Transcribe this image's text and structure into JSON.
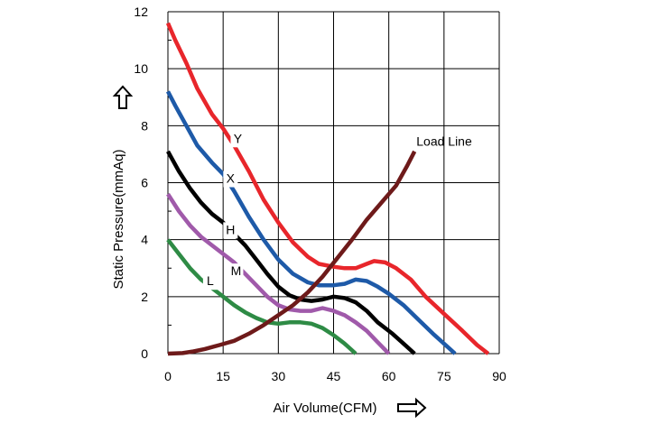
{
  "chart_data": {
    "type": "line",
    "title": "",
    "xlabel": "Air Volume(CFM)",
    "ylabel": "Static Pressure(mmAq)",
    "xlim": [
      0,
      90
    ],
    "ylim": [
      0,
      12
    ],
    "xticks": [
      0,
      15,
      30,
      45,
      60,
      75,
      90
    ],
    "yticks": [
      0,
      2,
      4,
      6,
      8,
      10,
      12
    ],
    "grid": true,
    "legend": "none",
    "series": [
      {
        "name": "Y",
        "color": "#e8262b",
        "points": [
          [
            0,
            11.6
          ],
          [
            2,
            11.0
          ],
          [
            5,
            10.2
          ],
          [
            8,
            9.3
          ],
          [
            12,
            8.4
          ],
          [
            15,
            7.9
          ],
          [
            18,
            7.3
          ],
          [
            22,
            6.4
          ],
          [
            26,
            5.4
          ],
          [
            30,
            4.6
          ],
          [
            34,
            3.9
          ],
          [
            38,
            3.4
          ],
          [
            41,
            3.15
          ],
          [
            45,
            3.05
          ],
          [
            48,
            3.0
          ],
          [
            51,
            3.0
          ],
          [
            54,
            3.15
          ],
          [
            56,
            3.25
          ],
          [
            59,
            3.2
          ],
          [
            62,
            3.0
          ],
          [
            66,
            2.6
          ],
          [
            70,
            2.0
          ],
          [
            75,
            1.4
          ],
          [
            80,
            0.8
          ],
          [
            84,
            0.3
          ],
          [
            87,
            0.0
          ]
        ]
      },
      {
        "name": "X",
        "color": "#1e5aa8",
        "points": [
          [
            0,
            9.2
          ],
          [
            2,
            8.7
          ],
          [
            5,
            8.0
          ],
          [
            8,
            7.3
          ],
          [
            12,
            6.7
          ],
          [
            15,
            6.3
          ],
          [
            18,
            5.7
          ],
          [
            22,
            4.8
          ],
          [
            26,
            4.0
          ],
          [
            30,
            3.3
          ],
          [
            34,
            2.8
          ],
          [
            38,
            2.5
          ],
          [
            41,
            2.4
          ],
          [
            45,
            2.4
          ],
          [
            48,
            2.45
          ],
          [
            51,
            2.6
          ],
          [
            54,
            2.55
          ],
          [
            57,
            2.35
          ],
          [
            60,
            2.1
          ],
          [
            64,
            1.7
          ],
          [
            68,
            1.2
          ],
          [
            72,
            0.7
          ],
          [
            75,
            0.35
          ],
          [
            78,
            0.0
          ]
        ]
      },
      {
        "name": "H",
        "color": "#000000",
        "points": [
          [
            0,
            7.1
          ],
          [
            3,
            6.4
          ],
          [
            6,
            5.8
          ],
          [
            9,
            5.3
          ],
          [
            12,
            4.9
          ],
          [
            15,
            4.6
          ],
          [
            18,
            4.2
          ],
          [
            21,
            3.8
          ],
          [
            24,
            3.3
          ],
          [
            27,
            2.8
          ],
          [
            30,
            2.35
          ],
          [
            33,
            2.05
          ],
          [
            36,
            1.9
          ],
          [
            39,
            1.85
          ],
          [
            42,
            1.9
          ],
          [
            45,
            2.0
          ],
          [
            48,
            1.95
          ],
          [
            51,
            1.8
          ],
          [
            54,
            1.5
          ],
          [
            57,
            1.1
          ],
          [
            61,
            0.7
          ],
          [
            64,
            0.35
          ],
          [
            67,
            0.0
          ]
        ]
      },
      {
        "name": "M",
        "color": "#a05aaa",
        "points": [
          [
            0,
            5.6
          ],
          [
            3,
            5.0
          ],
          [
            6,
            4.5
          ],
          [
            9,
            4.1
          ],
          [
            12,
            3.8
          ],
          [
            15,
            3.5
          ],
          [
            18,
            3.2
          ],
          [
            21,
            2.8
          ],
          [
            24,
            2.4
          ],
          [
            27,
            2.0
          ],
          [
            30,
            1.7
          ],
          [
            33,
            1.55
          ],
          [
            36,
            1.5
          ],
          [
            39,
            1.5
          ],
          [
            42,
            1.6
          ],
          [
            45,
            1.5
          ],
          [
            48,
            1.35
          ],
          [
            51,
            1.1
          ],
          [
            54,
            0.8
          ],
          [
            57,
            0.4
          ],
          [
            60,
            0.0
          ]
        ]
      },
      {
        "name": "L",
        "color": "#2e8b45",
        "points": [
          [
            0,
            4.0
          ],
          [
            3,
            3.5
          ],
          [
            6,
            3.0
          ],
          [
            9,
            2.6
          ],
          [
            12,
            2.3
          ],
          [
            15,
            2.0
          ],
          [
            18,
            1.7
          ],
          [
            21,
            1.45
          ],
          [
            24,
            1.25
          ],
          [
            27,
            1.1
          ],
          [
            30,
            1.05
          ],
          [
            33,
            1.1
          ],
          [
            36,
            1.1
          ],
          [
            39,
            1.05
          ],
          [
            42,
            0.9
          ],
          [
            45,
            0.65
          ],
          [
            48,
            0.35
          ],
          [
            51,
            0.0
          ]
        ]
      },
      {
        "name": "Load Line",
        "color": "#6e1a1a",
        "points": [
          [
            0,
            0.0
          ],
          [
            4,
            0.02
          ],
          [
            7,
            0.08
          ],
          [
            10,
            0.16
          ],
          [
            14,
            0.3
          ],
          [
            18,
            0.45
          ],
          [
            22,
            0.7
          ],
          [
            26,
            1.0
          ],
          [
            30,
            1.35
          ],
          [
            34,
            1.7
          ],
          [
            38,
            2.15
          ],
          [
            42,
            2.7
          ],
          [
            46,
            3.35
          ],
          [
            50,
            4.0
          ],
          [
            54,
            4.7
          ],
          [
            58,
            5.3
          ],
          [
            62,
            5.9
          ],
          [
            65,
            6.6
          ],
          [
            67,
            7.1
          ]
        ]
      }
    ],
    "labels": [
      {
        "text": "Y",
        "x": 19,
        "y": 7.4
      },
      {
        "text": "X",
        "x": 17,
        "y": 6.0
      },
      {
        "text": "H",
        "x": 17,
        "y": 4.2
      },
      {
        "text": "M",
        "x": 18.5,
        "y": 2.75
      },
      {
        "text": "L",
        "x": 11.5,
        "y": 2.4
      },
      {
        "text": "Load Line",
        "x": 67.5,
        "y": 7.3
      }
    ]
  }
}
